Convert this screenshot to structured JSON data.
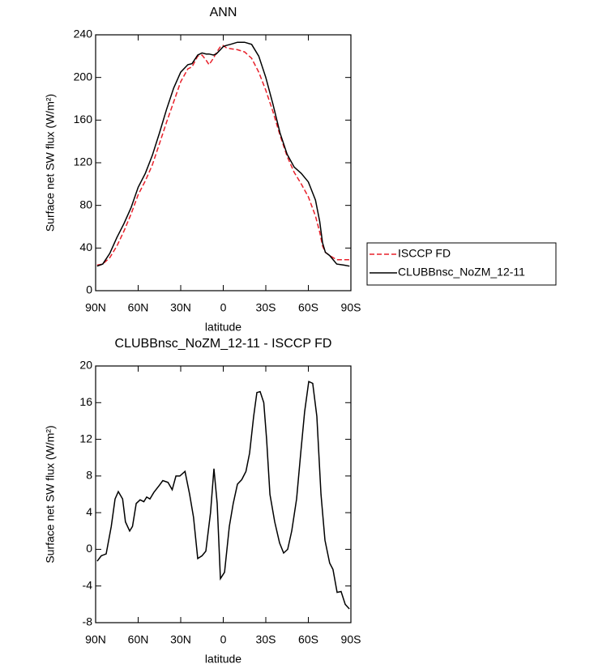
{
  "chart_data": [
    {
      "type": "line",
      "title": "ANN",
      "x_label": "latitude",
      "y_label": "Surface net SW flux (W/m²)",
      "x": [
        89,
        85,
        80,
        75,
        70,
        65,
        60,
        55,
        50,
        45,
        40,
        35,
        30,
        25,
        22,
        18,
        15,
        12,
        10,
        7,
        5,
        2,
        0,
        -2,
        -5,
        -10,
        -15,
        -20,
        -25,
        -30,
        -35,
        -40,
        -45,
        -50,
        -55,
        -60,
        -65,
        -68,
        -70,
        -72,
        -75,
        -80,
        -85,
        -89
      ],
      "series": [
        {
          "name": "ISCCP FD",
          "color": "#e8202a",
          "dash": true,
          "values": [
            24,
            25,
            31,
            42,
            56,
            72,
            90,
            103,
            118,
            138,
            158,
            177,
            196,
            208,
            210,
            220,
            221,
            216,
            212,
            218,
            223,
            229,
            230,
            228,
            227,
            226,
            224,
            218,
            205,
            188,
            168,
            146,
            126,
            111,
            100,
            88,
            70,
            55,
            42,
            36,
            33,
            29,
            29,
            29
          ]
        },
        {
          "name": "CLUBBnsc_NoZM_12-11",
          "color": "#000000",
          "dash": false,
          "values": [
            23,
            25,
            35,
            50,
            63,
            78,
            97,
            110,
            127,
            148,
            170,
            190,
            205,
            212,
            213,
            221,
            223,
            222,
            222,
            221,
            222,
            226,
            229,
            230,
            231,
            233,
            233,
            231,
            220,
            200,
            175,
            148,
            128,
            116,
            110,
            102,
            85,
            65,
            45,
            36,
            33,
            25,
            24,
            23
          ]
        }
      ],
      "xlim": [
        90,
        -90
      ],
      "xticks": [
        {
          "value": 90,
          "label": "90N"
        },
        {
          "value": 60,
          "label": "60N"
        },
        {
          "value": 30,
          "label": "30N"
        },
        0,
        {
          "value": -30,
          "label": "30S"
        },
        {
          "value": -60,
          "label": "60S"
        },
        {
          "value": -90,
          "label": "90S"
        }
      ],
      "ylim": [
        0,
        240
      ],
      "yticks": [
        0,
        40,
        80,
        120,
        160,
        200,
        240
      ],
      "legend": "right"
    },
    {
      "type": "line",
      "title": "CLUBBnsc_NoZM_12-11 - ISCCP FD",
      "x_label": "latitude",
      "y_label": "Surface net SW flux (W/m²)",
      "x": [
        88.9,
        86,
        82.6,
        79,
        76.3,
        74,
        71,
        69,
        66,
        64,
        61.4,
        58.6,
        56,
        54,
        51.7,
        49,
        45,
        42.6,
        39,
        36,
        33.4,
        30.6,
        27,
        23.7,
        21,
        18,
        15,
        12.3,
        9,
        6.6,
        4.3,
        2,
        -0.9,
        -4.3,
        -7,
        -10,
        -13,
        -16,
        -18.6,
        -21.4,
        -23.7,
        -26,
        -28.6,
        -30.6,
        -32.9,
        -36.3,
        -39.7,
        -42.6,
        -45.4,
        -48.3,
        -51.7,
        -54.6,
        -57.4,
        -60.3,
        -63.1,
        -66,
        -68.9,
        -71.7,
        -75,
        -77.4,
        -80.3,
        -83.1,
        -86,
        -88.9
      ],
      "values": [
        -1.3,
        -0.7,
        -0.5,
        2.5,
        5.5,
        6.3,
        5.5,
        3,
        2,
        2.5,
        5,
        5.4,
        5.2,
        5.7,
        5.5,
        6.2,
        7,
        7.5,
        7.3,
        6.5,
        8,
        8,
        8.5,
        6,
        3.5,
        -1,
        -0.7,
        -0.2,
        4,
        8.8,
        5,
        -3.2,
        -2.5,
        2.5,
        5,
        7.1,
        7.6,
        8.5,
        10.5,
        14.5,
        17.1,
        17.2,
        16,
        12,
        6,
        3,
        0.7,
        -0.4,
        0,
        2,
        5.5,
        10.5,
        15,
        18.3,
        18.1,
        14.5,
        6,
        1,
        -1.5,
        -2.2,
        -4.7,
        -4.6,
        -6,
        -6.5
      ],
      "color": "#000000",
      "xlim": [
        90,
        -90
      ],
      "xticks": [
        {
          "value": 90,
          "label": "90N"
        },
        {
          "value": 60,
          "label": "60N"
        },
        {
          "value": 30,
          "label": "30N"
        },
        0,
        {
          "value": -30,
          "label": "30S"
        },
        {
          "value": -60,
          "label": "60S"
        },
        {
          "value": -90,
          "label": "90S"
        }
      ],
      "ylim": [
        -8,
        20
      ],
      "yticks": [
        -8,
        -4,
        0,
        4,
        8,
        12,
        16,
        20
      ]
    }
  ]
}
